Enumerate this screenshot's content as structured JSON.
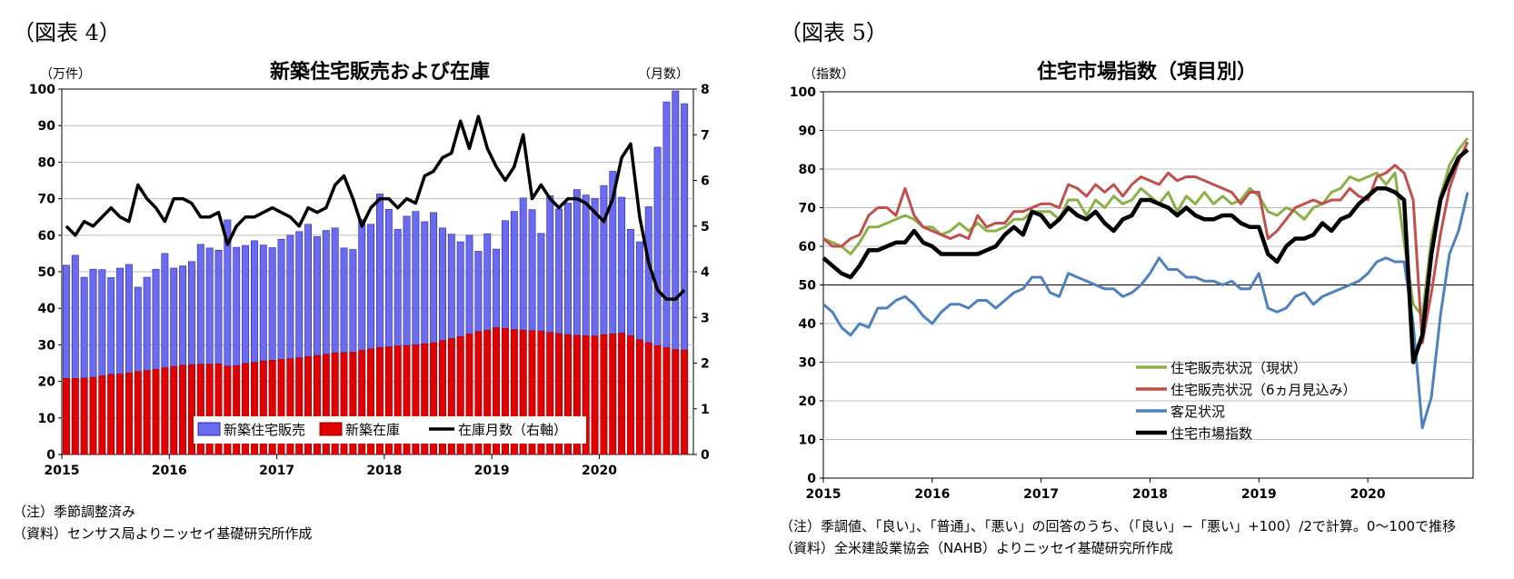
{
  "figures": [
    {
      "label": "（図表 4）",
      "title": "新築住宅販売および在庫",
      "y_left_unit": "（万件）",
      "y_right_unit": "（月数）",
      "notes": [
        "（注）季節調整済み",
        "（資料）センサス局よりニッセイ基礎研究所作成"
      ]
    },
    {
      "label": "（図表 5）",
      "title": "住宅市場指数（項目別）",
      "y_unit": "（指数）",
      "notes": [
        "（注）季調値、「良い」、「普通」、「悪い」の回答のうち、（「良い」−「悪い」+100）/2で計算。0～100で推移",
        "（資料）全米建設業協会（NAHB）よりニッセイ基礎研究所作成"
      ]
    }
  ],
  "chart_data": [
    {
      "type": "bar",
      "title": "新築住宅販売および在庫",
      "x_tick_labels": [
        "2015",
        "2016",
        "2017",
        "2018",
        "2019",
        "2020"
      ],
      "x_start": "2015-01",
      "x_end": "2020-08",
      "ylim_left": [
        0,
        100
      ],
      "yticks_left": [
        "0",
        "10",
        "20",
        "30",
        "40",
        "50",
        "60",
        "70",
        "80",
        "90",
        "100"
      ],
      "ylim_right": [
        0,
        8
      ],
      "yticks_right": [
        "0",
        "1",
        "2",
        "3",
        "4",
        "5",
        "6",
        "7",
        "8"
      ],
      "legend_position": "bottom-center",
      "series": [
        {
          "name": "新築住宅販売",
          "type": "bar",
          "axis": "left",
          "color": "#6b6bf0",
          "values": [
            51.8,
            54.5,
            48.5,
            50.7,
            50.6,
            48.4,
            51.0,
            52.0,
            45.8,
            48.5,
            50.7,
            55.0,
            51.0,
            51.6,
            52.8,
            57.5,
            56.5,
            55.9,
            64.2,
            56.7,
            57.2,
            58.5,
            57.3,
            56.6,
            58.9,
            60.0,
            61.0,
            63.0,
            59.6,
            61.3,
            62.0,
            56.5,
            56.1,
            64.3,
            63.0,
            71.3,
            67.1,
            61.6,
            65.2,
            66.5,
            63.7,
            66.2,
            62.0,
            60.3,
            58.2,
            60.0,
            55.6,
            60.4,
            56.2,
            64.0,
            66.5,
            70.2,
            67.0,
            60.5,
            70.8,
            67.2,
            68.8,
            72.5,
            71.0,
            70.1,
            73.6,
            77.5,
            70.4,
            61.6,
            58.2,
            67.8,
            84.1,
            96.5,
            99.5,
            96.0
          ]
        },
        {
          "name": "新築在庫",
          "type": "bar",
          "axis": "left",
          "color": "#e00000",
          "values": [
            20.8,
            20.8,
            20.9,
            21.1,
            21.5,
            21.9,
            22.0,
            22.3,
            22.7,
            23.0,
            23.3,
            23.7,
            24.1,
            24.4,
            24.6,
            24.7,
            24.7,
            24.8,
            24.2,
            24.3,
            24.9,
            25.2,
            25.6,
            25.8,
            26.0,
            26.2,
            26.5,
            26.8,
            27.1,
            27.4,
            27.8,
            27.9,
            28.0,
            28.5,
            28.9,
            29.3,
            29.5,
            29.7,
            29.8,
            30.0,
            30.3,
            30.6,
            31.2,
            31.7,
            32.3,
            33.0,
            33.6,
            34.0,
            34.7,
            34.5,
            34.2,
            34.0,
            33.9,
            33.8,
            33.4,
            33.1,
            32.8,
            32.6,
            32.5,
            32.4,
            32.8,
            33.0,
            33.2,
            32.5,
            31.4,
            30.6,
            29.8,
            29.3,
            28.7,
            28.6
          ]
        },
        {
          "name": "在庫月数（右軸）",
          "type": "line",
          "axis": "right",
          "color": "#000000",
          "values": [
            5.0,
            4.8,
            5.1,
            5.0,
            5.2,
            5.4,
            5.2,
            5.1,
            5.9,
            5.6,
            5.4,
            5.1,
            5.6,
            5.6,
            5.5,
            5.2,
            5.2,
            5.3,
            4.6,
            5.0,
            5.2,
            5.2,
            5.3,
            5.4,
            5.3,
            5.2,
            5.0,
            5.4,
            5.3,
            5.4,
            5.9,
            6.1,
            5.6,
            5.0,
            5.4,
            5.6,
            5.6,
            5.4,
            5.6,
            5.5,
            6.1,
            6.2,
            6.5,
            6.6,
            7.3,
            6.7,
            7.4,
            6.7,
            6.3,
            6.0,
            6.3,
            7.0,
            5.6,
            5.9,
            5.6,
            5.4,
            5.6,
            5.6,
            5.5,
            5.3,
            5.1,
            5.6,
            6.5,
            6.8,
            5.2,
            4.2,
            3.6,
            3.4,
            3.4,
            3.6
          ]
        }
      ]
    },
    {
      "type": "line",
      "title": "住宅市場指数（項目別）",
      "x_tick_labels": [
        "2015",
        "2016",
        "2017",
        "2018",
        "2019",
        "2020"
      ],
      "x_start": "2015-01",
      "x_end": "2020-10",
      "ylim": [
        0,
        100
      ],
      "yticks": [
        "0",
        "10",
        "20",
        "30",
        "40",
        "50",
        "60",
        "70",
        "80",
        "90",
        "100"
      ],
      "reference_line": 50,
      "legend_position": "bottom-center",
      "series": [
        {
          "name": "住宅販売状況（現状）",
          "color": "#8ab04a",
          "values": [
            62,
            61,
            60,
            58,
            61,
            65,
            65,
            66,
            67,
            68,
            67,
            65,
            65,
            63,
            64,
            66,
            64,
            66,
            64,
            64,
            65,
            67,
            67,
            69,
            69,
            69,
            67,
            72,
            72,
            68,
            72,
            70,
            73,
            71,
            72,
            75,
            73,
            71,
            74,
            69,
            73,
            71,
            74,
            71,
            73,
            71,
            72,
            75,
            73,
            69,
            68,
            70,
            69,
            67,
            70,
            71,
            74,
            75,
            78,
            77,
            78,
            79,
            76,
            79,
            61,
            45,
            42,
            62,
            73,
            81,
            85,
            88
          ]
        },
        {
          "name": "住宅販売状況（6ヵ月見込み）",
          "color": "#c0504d",
          "values": [
            62,
            60,
            60,
            62,
            63,
            68,
            70,
            70,
            68,
            75,
            68,
            65,
            64,
            63,
            62,
            63,
            62,
            68,
            65,
            66,
            66,
            69,
            69,
            70,
            71,
            71,
            70,
            76,
            75,
            73,
            76,
            74,
            76,
            73,
            76,
            78,
            77,
            76,
            79,
            77,
            78,
            78,
            77,
            76,
            75,
            74,
            71,
            74,
            74,
            62,
            64,
            67,
            70,
            71,
            72,
            71,
            72,
            72,
            75,
            73,
            72,
            78,
            79,
            81,
            79,
            72,
            35,
            48,
            63,
            75,
            82,
            87
          ]
        },
        {
          "name": "客足状況",
          "color": "#4f81bd",
          "values": [
            45,
            43,
            39,
            37,
            40,
            39,
            44,
            44,
            46,
            47,
            45,
            42,
            40,
            43,
            45,
            45,
            44,
            46,
            46,
            44,
            46,
            48,
            49,
            52,
            52,
            48,
            47,
            53,
            52,
            51,
            50,
            49,
            49,
            47,
            48,
            50,
            53,
            57,
            54,
            54,
            52,
            52,
            51,
            51,
            50,
            51,
            49,
            49,
            53,
            44,
            43,
            44,
            47,
            48,
            45,
            47,
            48,
            49,
            50,
            51,
            53,
            56,
            57,
            56,
            56,
            40,
            13,
            21,
            42,
            58,
            64,
            74
          ]
        },
        {
          "name": "住宅市場指数",
          "color": "#000000",
          "values": [
            57,
            55,
            53,
            52,
            55,
            59,
            59,
            60,
            61,
            61,
            64,
            61,
            60,
            58,
            58,
            58,
            58,
            58,
            59,
            60,
            63,
            65,
            63,
            69,
            68,
            65,
            67,
            70,
            68,
            67,
            69,
            66,
            64,
            67,
            68,
            72,
            72,
            71,
            70,
            68,
            70,
            68,
            67,
            67,
            68,
            68,
            66,
            65,
            65,
            58,
            56,
            60,
            62,
            62,
            63,
            66,
            64,
            67,
            68,
            71,
            73,
            75,
            75,
            74,
            72,
            30,
            37,
            58,
            72,
            78,
            83,
            85
          ]
        }
      ]
    }
  ]
}
